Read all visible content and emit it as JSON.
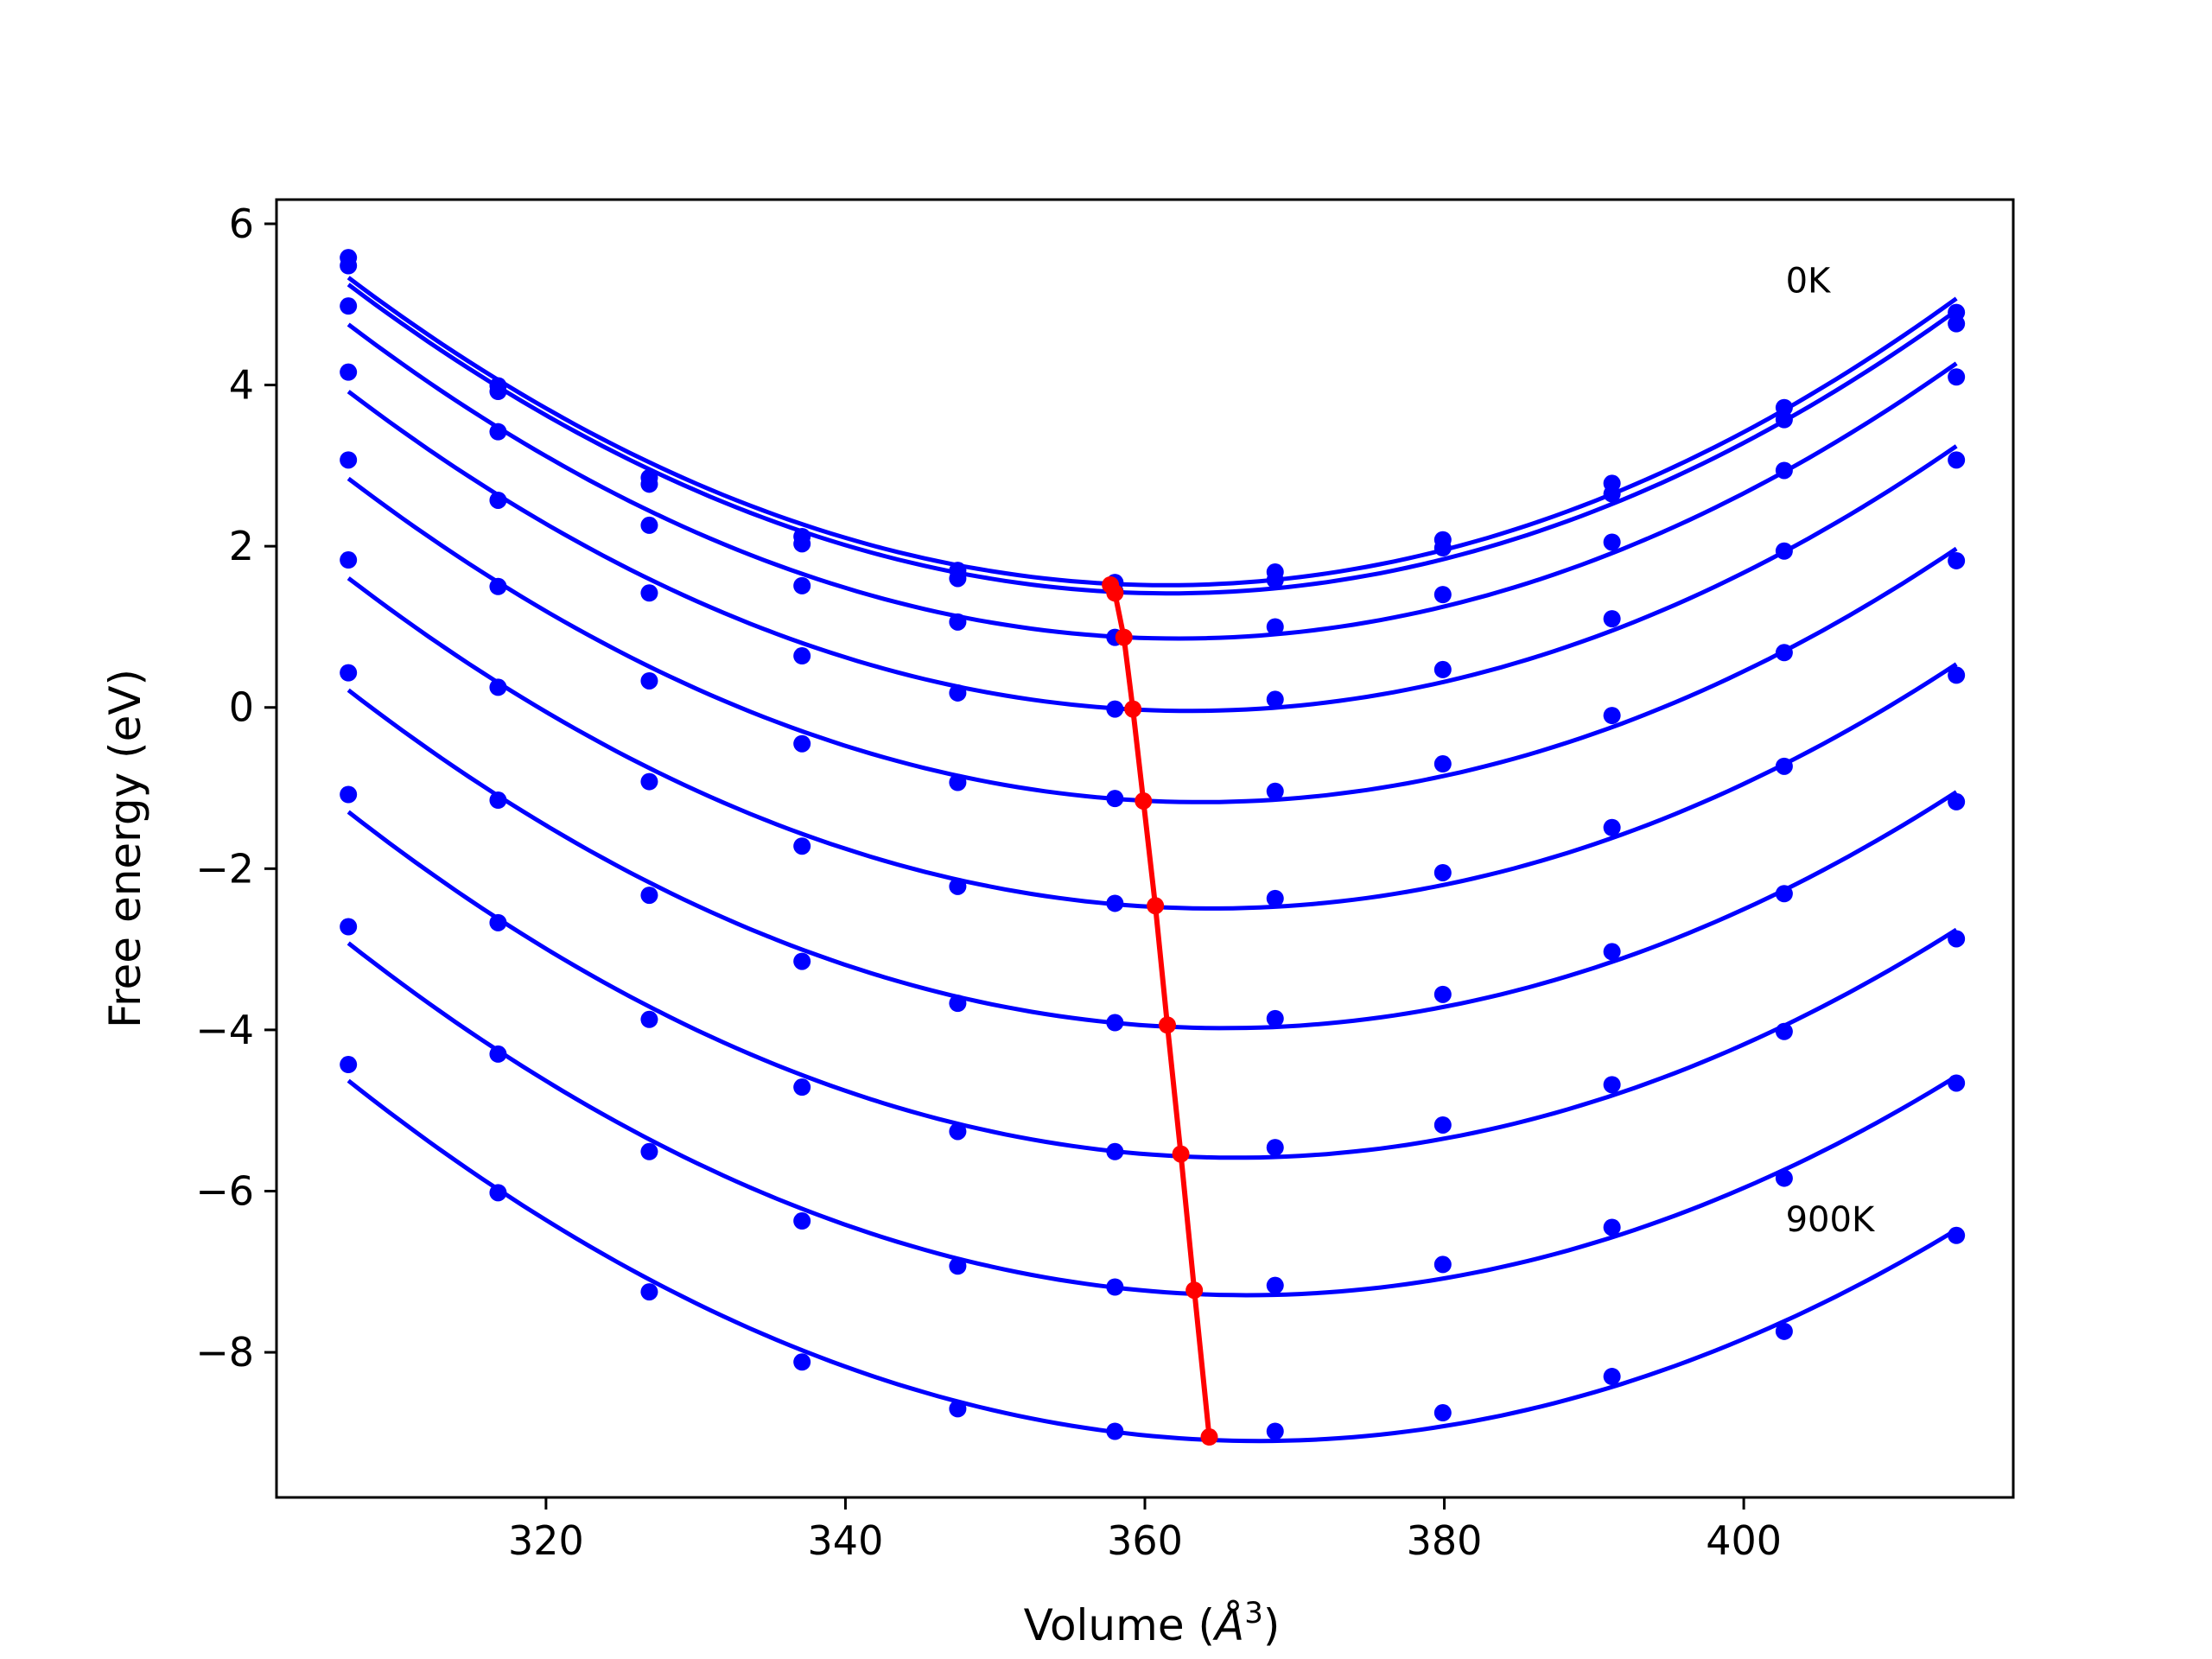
{
  "chart_data": {
    "type": "line",
    "xlabel": "Volume (",
    "xlabel_unit": "Å",
    "xlabel_sup": "3",
    "xlabel_close": ")",
    "ylabel": "Free energy (eV)",
    "xlim": [
      302,
      418
    ],
    "ylim": [
      -9.8,
      6.3
    ],
    "xticks": [
      320,
      340,
      360,
      380,
      400
    ],
    "yticks": [
      -8,
      -6,
      -4,
      -2,
      0,
      2,
      4,
      6
    ],
    "xtick_labels": [
      "320",
      "340",
      "360",
      "380",
      "400"
    ],
    "ytick_labels": [
      "−8",
      "−6",
      "−4",
      "−2",
      "0",
      "2",
      "4",
      "6"
    ],
    "grid": false,
    "legend": "none",
    "colors": {
      "curves": "#0000ff",
      "minimum_path": "#ff0000",
      "frame": "#000000"
    },
    "annotations": [
      {
        "text": "0K",
        "x": 402.8,
        "y": 5.15
      },
      {
        "text": "900K",
        "x": 402.8,
        "y": -6.5
      }
    ],
    "x": [
      306.8,
      316.8,
      326.9,
      337.1,
      347.5,
      358.0,
      368.7,
      379.9,
      391.2,
      402.7,
      414.2
    ],
    "series": [
      {
        "values": [
          5.58,
          3.99,
          2.85,
          2.12,
          1.7,
          1.55,
          1.68,
          2.08,
          2.78,
          3.72,
          4.9
        ],
        "min_x": 357.7,
        "min_y": 1.52
      },
      {
        "values": [
          5.48,
          3.92,
          2.77,
          2.03,
          1.6,
          1.44,
          1.58,
          1.98,
          2.65,
          3.57,
          4.76
        ],
        "min_x": 358.0,
        "min_y": 1.42
      },
      {
        "values": [
          4.98,
          3.42,
          2.26,
          1.51,
          1.06,
          0.87,
          1.0,
          1.4,
          2.05,
          2.94,
          4.1
        ],
        "min_x": 358.6,
        "min_y": 0.87
      },
      {
        "values": [
          4.16,
          2.57,
          1.42,
          0.64,
          0.18,
          -0.02,
          0.1,
          0.47,
          1.1,
          1.94,
          3.07
        ],
        "min_x": 359.2,
        "min_y": -0.02
      },
      {
        "values": [
          3.07,
          1.5,
          0.33,
          -0.45,
          -0.93,
          -1.13,
          -1.04,
          -0.7,
          -0.1,
          0.68,
          1.82
        ],
        "min_x": 359.9,
        "min_y": -1.16
      },
      {
        "values": [
          1.83,
          0.25,
          -0.92,
          -1.72,
          -2.22,
          -2.43,
          -2.37,
          -2.05,
          -1.49,
          -0.73,
          0.4
        ],
        "min_x": 360.7,
        "min_y": -2.46
      },
      {
        "values": [
          0.43,
          -1.15,
          -2.33,
          -3.15,
          -3.67,
          -3.91,
          -3.86,
          -3.56,
          -3.03,
          -2.31,
          -1.17
        ],
        "min_x": 361.5,
        "min_y": -3.94
      },
      {
        "values": [
          -1.08,
          -2.67,
          -3.87,
          -4.71,
          -5.26,
          -5.51,
          -5.46,
          -5.18,
          -4.68,
          -4.02,
          -2.87
        ],
        "min_x": 362.4,
        "min_y": -5.54
      },
      {
        "values": [
          -2.72,
          -4.3,
          -5.51,
          -6.37,
          -6.93,
          -7.19,
          -7.17,
          -6.91,
          -6.45,
          -5.84,
          -4.66
        ],
        "min_x": 363.3,
        "min_y": -7.23
      },
      {
        "values": [
          -4.43,
          -6.02,
          -7.25,
          -8.12,
          -8.7,
          -8.98,
          -8.98,
          -8.75,
          -8.3,
          -7.74,
          -6.55
        ],
        "min_x": 364.3,
        "min_y": -9.05
      }
    ]
  }
}
